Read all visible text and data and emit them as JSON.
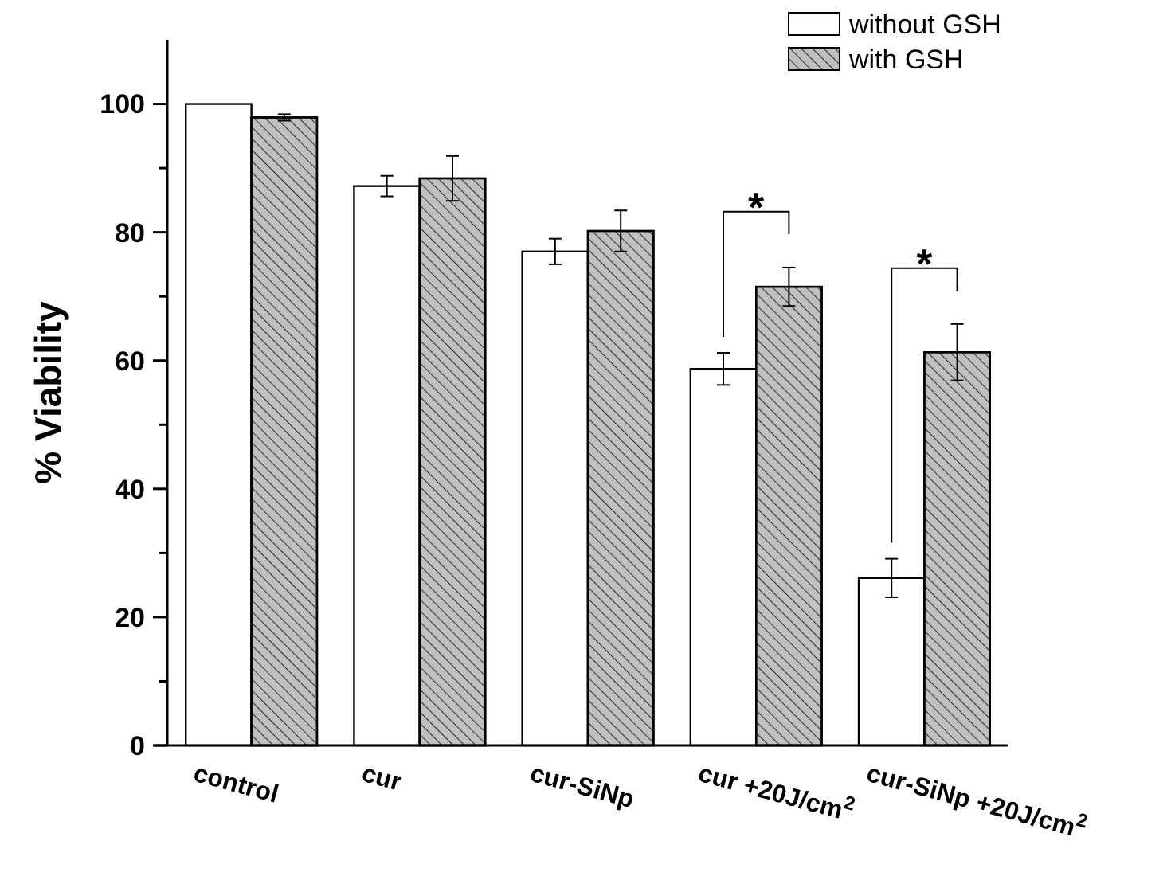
{
  "chart_data": {
    "type": "bar",
    "ylabel": "% Viability",
    "categories": [
      "control",
      "cur",
      "cur-SiNp",
      "cur +20J/cm$^{2}$",
      "cur-SiNp +20J/cm$^{2}$"
    ],
    "series": [
      {
        "name": "without GSH",
        "color": "#ffffff",
        "values": [
          100,
          87.2,
          77.0,
          58.7,
          26.1
        ],
        "errors": [
          null,
          1.6,
          2.0,
          2.5,
          3.0
        ]
      },
      {
        "name": "with GSH",
        "color": "#c0c0c0",
        "values": [
          97.9,
          88.4,
          80.2,
          71.5,
          61.3
        ],
        "errors": [
          0.5,
          3.5,
          3.2,
          3.0,
          4.4
        ]
      }
    ],
    "ylim": [
      0,
      110
    ],
    "yticks": [
      0,
      {
        "value": 10,
        "label": null
      },
      20,
      {
        "value": 30,
        "label": null
      },
      40,
      {
        "value": 50,
        "label": null
      },
      60,
      {
        "value": 70,
        "label": null
      },
      80,
      {
        "value": 90,
        "label": null
      },
      100
    ],
    "annotations": [
      "*",
      "*"
    ],
    "legend": "top right",
    "grid": false
  }
}
